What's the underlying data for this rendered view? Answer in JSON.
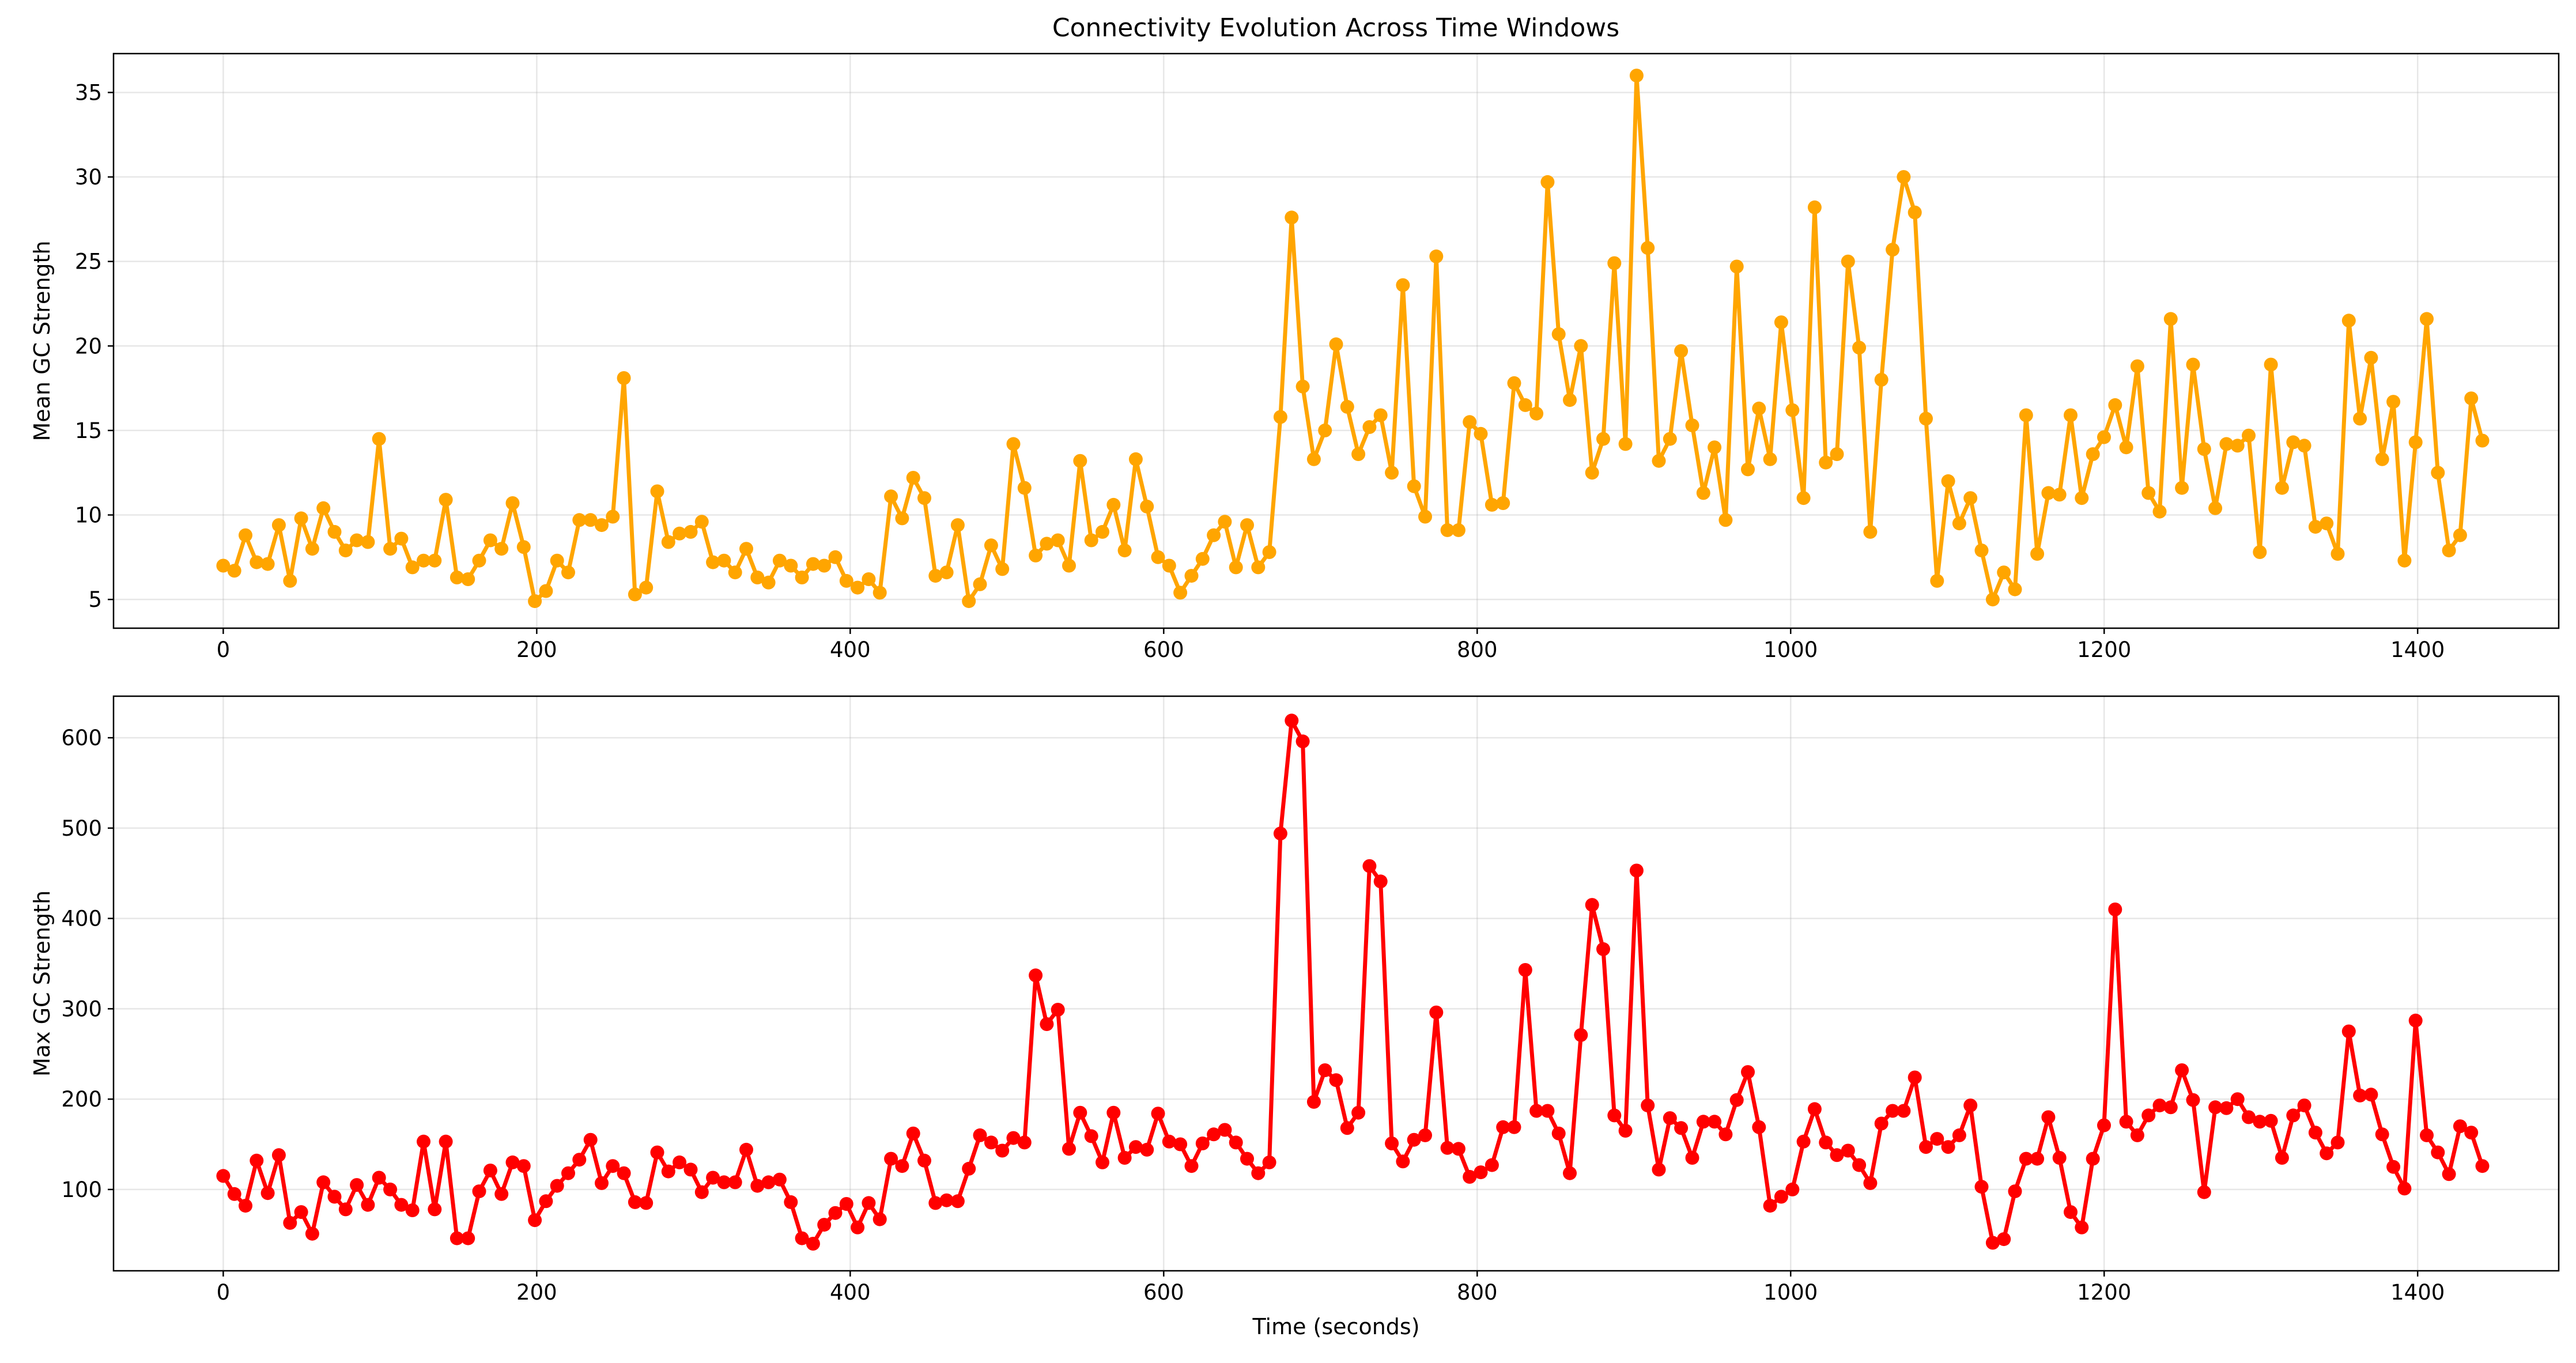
{
  "figure": {
    "title": "Connectivity Evolution Across Time Windows"
  },
  "chart_data": [
    {
      "type": "line",
      "title": "Connectivity Evolution Across Time Windows",
      "xlabel": "",
      "ylabel": "Mean GC Strength",
      "xlim": [
        -70,
        1490
      ],
      "ylim": [
        3.3,
        37.3
      ],
      "xticks": [
        0,
        200,
        400,
        600,
        800,
        1000,
        1200,
        1400
      ],
      "yticks": [
        5,
        10,
        15,
        20,
        25,
        30,
        35
      ],
      "grid": true,
      "color": "#FFA500",
      "marker": "circle",
      "x_start": 0,
      "x_step": 7.1,
      "values": [
        7.0,
        6.7,
        8.8,
        7.2,
        7.1,
        9.4,
        6.1,
        9.8,
        8.0,
        10.4,
        9.0,
        7.9,
        8.5,
        8.4,
        14.5,
        8.0,
        8.6,
        6.9,
        7.3,
        7.3,
        10.9,
        6.3,
        6.2,
        7.3,
        8.5,
        8.0,
        10.7,
        8.1,
        4.9,
        5.5,
        7.3,
        6.6,
        9.7,
        9.7,
        9.4,
        9.9,
        18.1,
        5.3,
        5.7,
        11.4,
        8.4,
        8.9,
        9.0,
        9.6,
        7.2,
        7.3,
        6.6,
        8.0,
        6.3,
        6.0,
        7.3,
        7.0,
        6.3,
        7.1,
        7.0,
        7.5,
        6.1,
        5.7,
        6.2,
        5.4,
        11.1,
        9.8,
        12.2,
        11.0,
        6.4,
        6.6,
        9.4,
        4.9,
        5.9,
        8.2,
        6.8,
        14.2,
        11.6,
        7.6,
        8.3,
        8.5,
        7.0,
        13.2,
        8.5,
        9.0,
        10.6,
        7.9,
        13.3,
        10.5,
        7.5,
        7.0,
        5.4,
        6.4,
        7.4,
        8.8,
        9.6,
        6.9,
        9.4,
        6.9,
        7.8,
        15.8,
        27.6,
        17.6,
        13.3,
        15.0,
        20.1,
        16.4,
        13.6,
        15.2,
        15.9,
        12.5,
        23.6,
        11.7,
        9.9,
        25.3,
        9.1,
        9.1,
        15.5,
        14.8,
        10.6,
        10.7,
        17.8,
        16.5,
        16.0,
        29.7,
        20.7,
        16.8,
        20.0,
        12.5,
        14.5,
        24.9,
        14.2,
        36.0,
        25.8,
        13.2,
        14.5,
        19.7,
        15.3,
        11.3,
        14.0,
        9.7,
        24.7,
        12.7,
        16.3,
        13.3,
        21.4,
        16.2,
        11.0,
        28.2,
        13.1,
        13.6,
        25.0,
        19.9,
        9.0,
        18.0,
        25.7,
        30.0,
        27.9,
        15.7,
        6.1,
        12.0,
        9.5,
        11.0,
        7.9,
        5.0,
        6.6,
        5.6,
        15.9,
        7.7,
        11.3,
        11.2,
        15.9,
        11.0,
        13.6,
        14.6,
        16.5,
        14.0,
        18.8,
        11.3,
        10.2,
        21.6,
        11.6,
        18.9,
        13.9,
        10.4,
        14.2,
        14.1,
        14.7,
        7.8,
        18.9,
        11.6,
        14.3,
        14.1,
        9.3,
        9.5,
        7.7,
        21.5,
        15.7,
        19.3,
        13.3,
        16.7,
        7.3,
        14.3,
        21.6,
        12.5,
        7.9,
        8.8,
        16.9,
        14.4
      ]
    },
    {
      "type": "line",
      "title": "",
      "xlabel": "Time (seconds)",
      "ylabel": "Max GC Strength",
      "xlim": [
        -70,
        1490
      ],
      "ylim": [
        10,
        646
      ],
      "xticks": [
        0,
        200,
        400,
        600,
        800,
        1000,
        1200,
        1400
      ],
      "yticks": [
        100,
        200,
        300,
        400,
        500,
        600
      ],
      "grid": true,
      "color": "#FF0000",
      "marker": "circle",
      "x_start": 0,
      "x_step": 7.1,
      "values": [
        115,
        95,
        82,
        132,
        96,
        138,
        63,
        75,
        51,
        108,
        92,
        78,
        105,
        83,
        113,
        100,
        83,
        77,
        153,
        78,
        153,
        46,
        46,
        98,
        121,
        95,
        130,
        126,
        66,
        87,
        104,
        118,
        133,
        155,
        107,
        126,
        118,
        86,
        85,
        141,
        120,
        130,
        122,
        97,
        113,
        108,
        108,
        144,
        104,
        108,
        111,
        86,
        46,
        40,
        61,
        74,
        84,
        58,
        85,
        67,
        134,
        126,
        162,
        132,
        85,
        88,
        87,
        123,
        160,
        152,
        143,
        157,
        152,
        337,
        283,
        299,
        145,
        185,
        159,
        130,
        185,
        135,
        147,
        144,
        184,
        153,
        150,
        126,
        151,
        161,
        166,
        152,
        134,
        118,
        130,
        494,
        619,
        596,
        197,
        232,
        221,
        168,
        185,
        458,
        441,
        151,
        131,
        155,
        160,
        296,
        146,
        145,
        114,
        119,
        127,
        169,
        169,
        343,
        187,
        187,
        162,
        118,
        271,
        415,
        366,
        182,
        165,
        453,
        193,
        122,
        179,
        168,
        135,
        175,
        175,
        161,
        199,
        230,
        169,
        82,
        92,
        100,
        153,
        189,
        152,
        138,
        143,
        127,
        107,
        173,
        187,
        187,
        224,
        147,
        156,
        147,
        160,
        193,
        103,
        41,
        45,
        98,
        134,
        134,
        180,
        135,
        75,
        58,
        134,
        171,
        410,
        175,
        160,
        182,
        193,
        191,
        232,
        199,
        97,
        191,
        190,
        200,
        180,
        175,
        176,
        135,
        182,
        193,
        163,
        140,
        152,
        275,
        204,
        205,
        161,
        125,
        101,
        287,
        160,
        141,
        117,
        170,
        163,
        126
      ]
    }
  ]
}
